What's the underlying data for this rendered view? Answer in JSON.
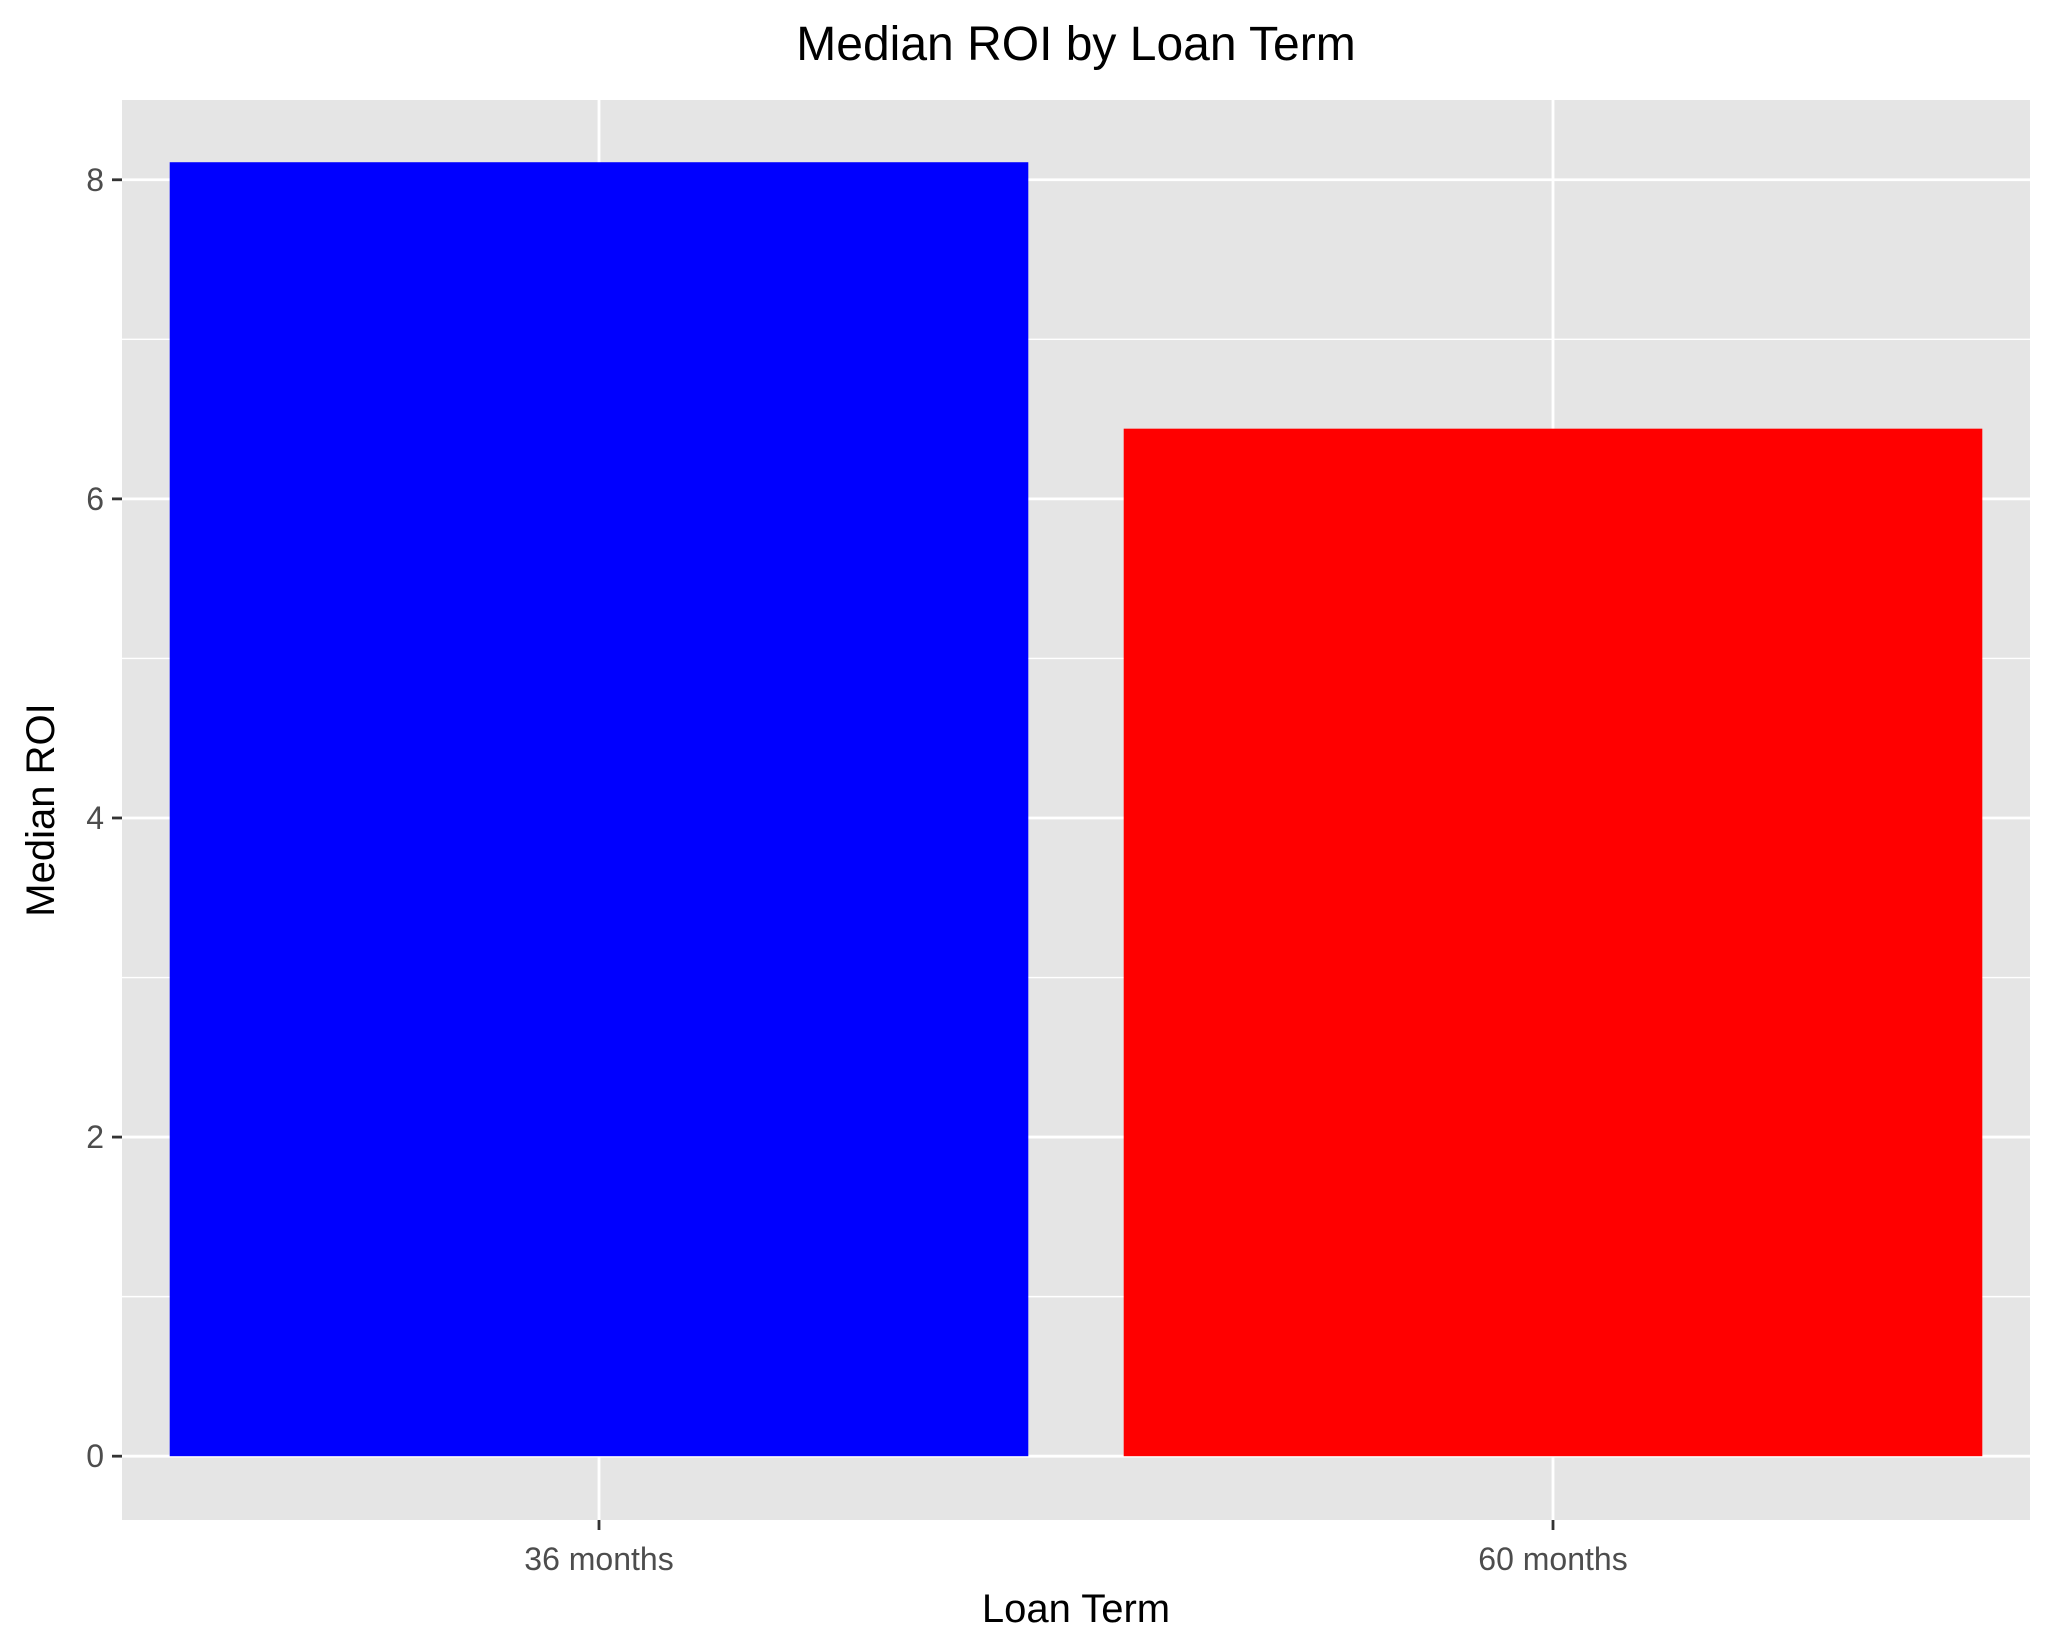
{
  "chart_data": {
    "type": "bar",
    "title": "Median ROI by Loan Term",
    "xlabel": "Loan Term",
    "ylabel": "Median ROI",
    "categories": [
      "36 months",
      "60 months"
    ],
    "values": [
      8.11,
      6.44
    ],
    "bar_colors": [
      "#0000FF",
      "#FF0000"
    ],
    "ylim": [
      -0.4,
      8.5
    ],
    "yticks": [
      0,
      2,
      4,
      6,
      8
    ],
    "ytick_labels": [
      "0",
      "2",
      "4",
      "6",
      "8"
    ],
    "grid": true,
    "panel_background": "#E5E5E5",
    "gridline_color": "#FFFFFF",
    "legend": "none"
  }
}
